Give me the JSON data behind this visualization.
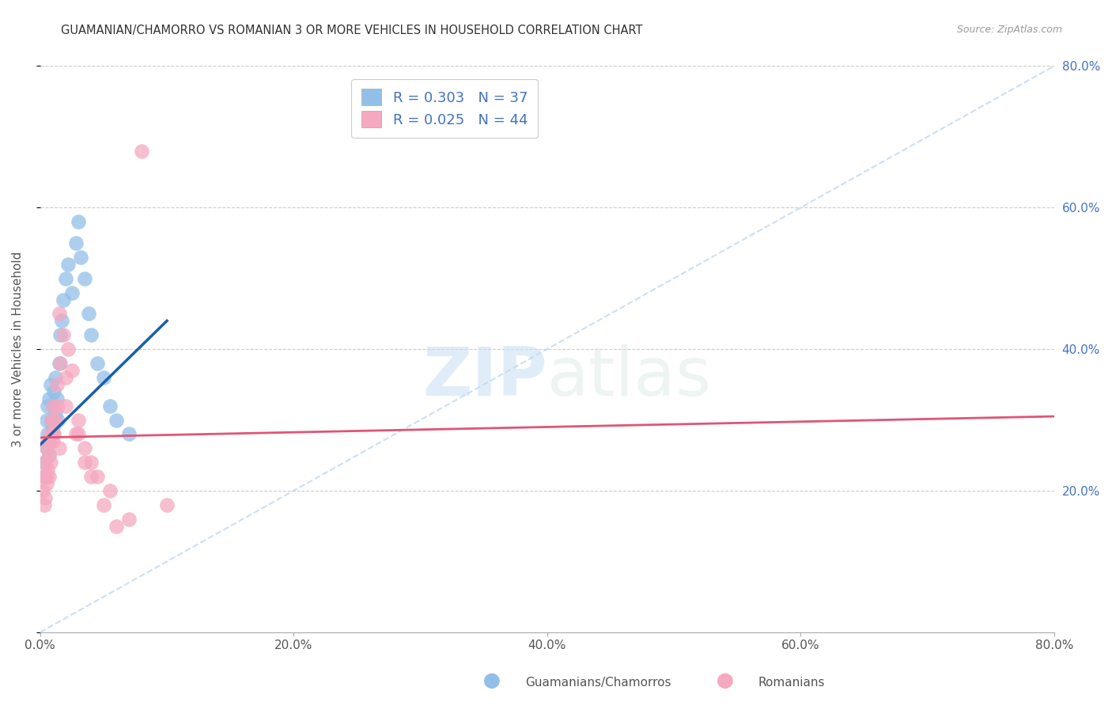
{
  "title": "GUAMANIAN/CHAMORRO VS ROMANIAN 3 OR MORE VEHICLES IN HOUSEHOLD CORRELATION CHART",
  "source": "Source: ZipAtlas.com",
  "ylabel": "3 or more Vehicles in Household",
  "legend_label1": "Guamanians/Chamorros",
  "legend_label2": "Romanians",
  "R1": 0.303,
  "N1": 37,
  "R2": 0.025,
  "N2": 44,
  "blue_color": "#92bfe8",
  "pink_color": "#f5a8bf",
  "blue_line_color": "#1a5fa8",
  "pink_line_color": "#e05575",
  "diag_color": "#c0d8f0",
  "watermark_zip": "ZIP",
  "watermark_atlas": "atlas",
  "xlim": [
    0,
    80
  ],
  "ylim": [
    0,
    80
  ],
  "xticks": [
    0,
    20,
    40,
    60,
    80
  ],
  "yticks": [
    0,
    20,
    40,
    60,
    80
  ],
  "xtick_labels": [
    "0.0%",
    "20.0%",
    "40.0%",
    "60.0%",
    "80.0%"
  ],
  "ytick_labels_right": [
    "",
    "20.0%",
    "40.0%",
    "60.0%",
    "80.0%"
  ],
  "guamanian_x": [
    0.3,
    0.4,
    0.5,
    0.5,
    0.6,
    0.6,
    0.7,
    0.7,
    0.8,
    0.8,
    0.9,
    1.0,
    1.0,
    1.0,
    1.1,
    1.2,
    1.2,
    1.3,
    1.4,
    1.5,
    1.6,
    1.7,
    1.8,
    2.0,
    2.2,
    2.5,
    2.8,
    3.0,
    3.2,
    3.5,
    3.8,
    4.0,
    4.5,
    5.0,
    5.5,
    6.0,
    7.0
  ],
  "guamanian_y": [
    24.0,
    22.0,
    26.0,
    30.0,
    28.0,
    32.0,
    25.0,
    33.0,
    27.0,
    35.0,
    30.0,
    29.0,
    32.0,
    28.0,
    34.0,
    31.0,
    36.0,
    33.0,
    30.0,
    38.0,
    42.0,
    44.0,
    47.0,
    50.0,
    52.0,
    48.0,
    55.0,
    58.0,
    53.0,
    50.0,
    45.0,
    42.0,
    38.0,
    36.0,
    32.0,
    30.0,
    28.0
  ],
  "romanian_x": [
    0.2,
    0.3,
    0.3,
    0.4,
    0.4,
    0.5,
    0.5,
    0.6,
    0.6,
    0.7,
    0.7,
    0.8,
    0.8,
    0.9,
    1.0,
    1.0,
    1.1,
    1.2,
    1.3,
    1.4,
    1.5,
    1.6,
    1.8,
    2.0,
    2.2,
    2.5,
    2.8,
    3.0,
    3.5,
    4.0,
    4.5,
    5.0,
    6.0,
    7.0,
    10.0,
    0.5,
    1.0,
    1.5,
    2.0,
    3.0,
    3.5,
    4.0,
    5.5,
    8.0
  ],
  "romanian_y": [
    20.0,
    18.0,
    22.0,
    19.0,
    24.0,
    21.0,
    26.0,
    23.0,
    27.0,
    22.0,
    25.0,
    28.0,
    24.0,
    30.0,
    27.0,
    32.0,
    28.0,
    30.0,
    35.0,
    32.0,
    45.0,
    38.0,
    42.0,
    36.0,
    40.0,
    37.0,
    28.0,
    30.0,
    26.0,
    24.0,
    22.0,
    18.0,
    15.0,
    16.0,
    18.0,
    22.0,
    28.0,
    26.0,
    32.0,
    28.0,
    24.0,
    22.0,
    20.0,
    68.0
  ],
  "blue_line_x": [
    0,
    10
  ],
  "blue_line_y": [
    26.5,
    44.0
  ],
  "pink_line_x": [
    0,
    80
  ],
  "pink_line_y": [
    27.5,
    30.5
  ]
}
